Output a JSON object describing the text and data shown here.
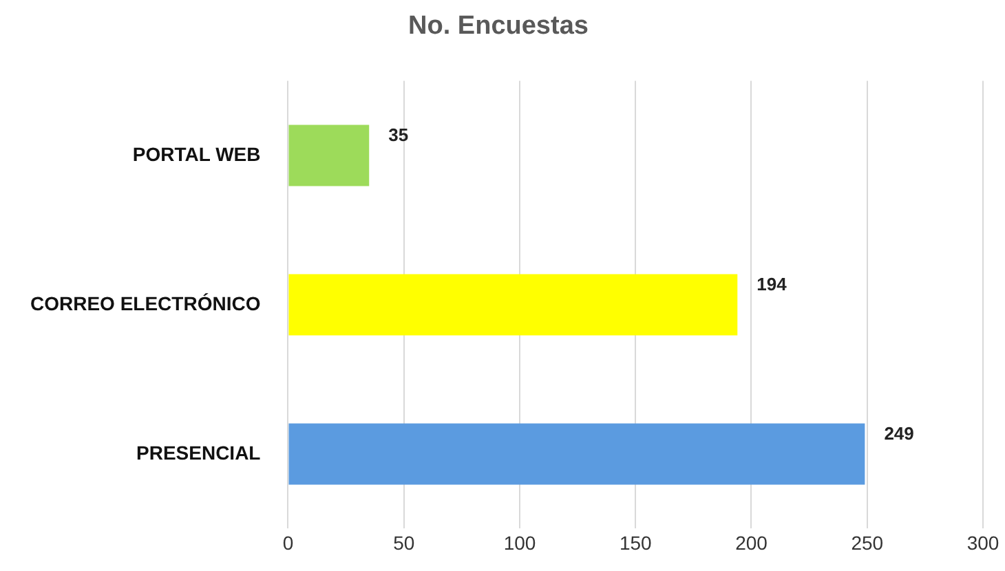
{
  "chart_data": {
    "type": "bar",
    "orientation": "horizontal",
    "title": "No. Encuestas",
    "categories": [
      "PORTAL WEB",
      "CORREO ELECTRÓNICO",
      "PRESENCIAL"
    ],
    "values": [
      35,
      194,
      249
    ],
    "colors": [
      "#9ddb5a",
      "#ffff00",
      "#5b9be0"
    ],
    "xlim": [
      0,
      300
    ],
    "xticks": [
      0,
      50,
      100,
      150,
      200,
      250,
      300
    ],
    "grid": "x",
    "legend": false,
    "data_labels": true
  }
}
